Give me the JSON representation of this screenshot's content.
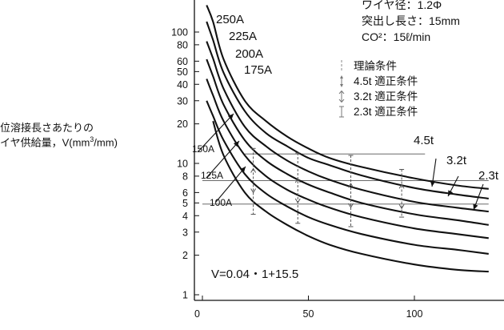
{
  "ylabel_lines": [
    "位溶接長さあたりの",
    "イヤ供給量，V(mm"
  ],
  "ylabel_sup": "3",
  "ylabel_tail": "/mm)",
  "conditions": [
    "ワイヤ径：1.2Φ",
    "突出し長さ：15mm",
    "CO²：15ℓ/min"
  ],
  "legend": [
    {
      "symbol": "theory",
      "label": "理論条件"
    },
    {
      "symbol": "4.5t",
      "label": "4.5t 適正条件"
    },
    {
      "symbol": "3.2t",
      "label": "3.2t 適正条件"
    },
    {
      "symbol": "2.3t",
      "label": "2.3t 適正条件"
    }
  ],
  "formula": "V=0.04・1+15.5",
  "chart_data": {
    "type": "line",
    "xlabel": "",
    "ylabel": "位溶接長さあたりのイヤ供給量，V(mm³/mm)",
    "y_scale": "log",
    "xlim": [
      0,
      135
    ],
    "ylim": [
      1,
      160
    ],
    "x_ticks": [
      0,
      50,
      100
    ],
    "y_ticks": [
      1,
      2,
      3,
      4,
      5,
      6,
      8,
      10,
      20,
      30,
      40,
      50,
      60,
      80,
      100
    ],
    "series": [
      {
        "name": "250A",
        "x": [
          2,
          5,
          10,
          20,
          30,
          40,
          50,
          60,
          75,
          100,
          120,
          135
        ],
        "y": [
          160,
          120,
          62,
          30,
          21,
          16,
          13,
          11,
          9.4,
          7.7,
          6.8,
          6.4
        ]
      },
      {
        "name": "225A",
        "x": [
          2,
          5,
          10,
          20,
          30,
          40,
          50,
          60,
          75,
          100,
          120,
          135
        ],
        "y": [
          120,
          87,
          49,
          25,
          17,
          13.5,
          11,
          9.7,
          8.1,
          6.5,
          5.8,
          5.4
        ]
      },
      {
        "name": "200A",
        "x": [
          2,
          5,
          10,
          20,
          30,
          40,
          50,
          60,
          75,
          100,
          120,
          135
        ],
        "y": [
          85,
          63,
          37,
          19,
          13.5,
          10.5,
          8.7,
          7.5,
          6.3,
          5.1,
          4.6,
          4.3
        ]
      },
      {
        "name": "175A",
        "x": [
          2,
          5,
          10,
          20,
          30,
          40,
          50,
          60,
          75,
          100,
          120,
          135
        ],
        "y": [
          62,
          46,
          28,
          15,
          10.5,
          8.3,
          6.9,
          6.0,
          5.0,
          4.1,
          3.7,
          3.4
        ]
      },
      {
        "name": "150A",
        "x": [
          2,
          5,
          10,
          20,
          30,
          40,
          50,
          60,
          75,
          100,
          120,
          135
        ],
        "y": [
          44,
          33,
          21,
          11.5,
          8.0,
          6.3,
          5.3,
          4.6,
          3.9,
          3.2,
          2.9,
          2.7
        ]
      },
      {
        "name": "125A",
        "x": [
          2,
          5,
          10,
          20,
          30,
          40,
          50,
          60,
          75,
          100,
          120,
          135
        ],
        "y": [
          30,
          23,
          15,
          8.3,
          5.9,
          4.7,
          3.9,
          3.4,
          2.9,
          2.4,
          2.2,
          2.05
        ]
      },
      {
        "name": "100A",
        "x": [
          5,
          10,
          20,
          30,
          40,
          50,
          60,
          75,
          100,
          120,
          135
        ],
        "y": [
          21,
          11.5,
          6.0,
          4.3,
          3.4,
          2.8,
          2.4,
          2.05,
          1.7,
          1.55,
          1.5
        ]
      }
    ],
    "ranges": [
      {
        "x": 24,
        "lo": 4.1,
        "hi": 13.0,
        "center": 7.4,
        "type": "2.3t"
      },
      {
        "x": 45,
        "lo": 3.5,
        "hi": 12.0,
        "center": 6.2,
        "type": "3.2t"
      },
      {
        "x": 70,
        "lo": 3.3,
        "hi": 11.5,
        "center": 5.7,
        "type": "2.3t"
      },
      {
        "x": 94,
        "lo": 3.9,
        "hi": 9.0,
        "center": 5.6,
        "type": "4.5t"
      }
    ],
    "theory_lines": [
      {
        "name": "4.5t",
        "y": 11.8,
        "x_start": 20,
        "x_end": 105
      },
      {
        "name": "3.2t",
        "y": 7.4,
        "x_start": 0,
        "x_end": 135
      },
      {
        "name": "2.3t",
        "y": 4.9,
        "x_start": 0,
        "x_end": 135
      }
    ]
  }
}
